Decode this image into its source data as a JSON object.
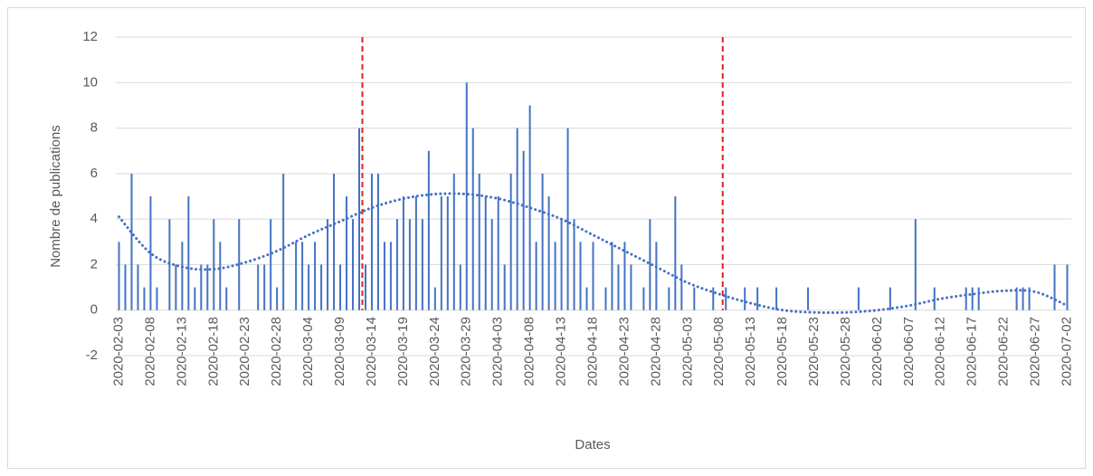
{
  "chart_data": {
    "type": "bar",
    "x_label": "Dates",
    "y_label": "Nombre de publications",
    "categories": [
      "2020-02-03",
      null,
      null,
      null,
      null,
      "2020-02-08",
      null,
      null,
      null,
      null,
      "2020-02-13",
      null,
      null,
      null,
      null,
      "2020-02-18",
      null,
      null,
      null,
      null,
      "2020-02-23",
      null,
      null,
      null,
      null,
      "2020-02-28",
      null,
      null,
      null,
      null,
      "2020-03-04",
      null,
      null,
      null,
      null,
      "2020-03-09",
      null,
      null,
      null,
      null,
      "2020-03-14",
      null,
      null,
      null,
      null,
      "2020-03-19",
      null,
      null,
      null,
      null,
      "2020-03-24",
      null,
      null,
      null,
      null,
      "2020-03-29",
      null,
      null,
      null,
      null,
      "2020-04-03",
      null,
      null,
      null,
      null,
      "2020-04-08",
      null,
      null,
      null,
      null,
      "2020-04-13",
      null,
      null,
      null,
      null,
      "2020-04-18",
      null,
      null,
      null,
      null,
      "2020-04-23",
      null,
      null,
      null,
      null,
      "2020-04-28",
      null,
      null,
      null,
      null,
      "2020-05-03",
      null,
      null,
      null,
      null,
      "2020-05-08",
      null,
      null,
      null,
      null,
      "2020-05-13",
      null,
      null,
      null,
      null,
      "2020-05-18",
      null,
      null,
      null,
      null,
      "2020-05-23",
      null,
      null,
      null,
      null,
      "2020-05-28",
      null,
      null,
      null,
      null,
      "2020-06-02",
      null,
      null,
      null,
      null,
      "2020-06-07",
      null,
      null,
      null,
      null,
      "2020-06-12",
      null,
      null,
      null,
      null,
      "2020-06-17",
      null,
      null,
      null,
      null,
      "2020-06-22",
      null,
      null,
      null,
      null,
      "2020-06-27",
      null,
      null,
      null,
      null,
      "2020-07-02"
    ],
    "values": [
      3,
      2,
      6,
      2,
      1,
      5,
      1,
      0,
      4,
      2,
      3,
      5,
      1,
      2,
      2,
      4,
      3,
      1,
      0,
      4,
      0,
      0,
      2,
      2,
      4,
      1,
      6,
      0,
      3,
      3,
      2,
      3,
      2,
      4,
      6,
      2,
      5,
      4,
      8,
      2,
      6,
      6,
      3,
      3,
      4,
      5,
      4,
      5,
      4,
      7,
      1,
      5,
      5,
      6,
      2,
      10,
      8,
      6,
      5,
      4,
      5,
      2,
      6,
      8,
      7,
      9,
      3,
      6,
      5,
      3,
      4,
      8,
      4,
      3,
      1,
      3,
      0,
      1,
      3,
      2,
      3,
      2,
      0,
      1,
      4,
      3,
      0,
      1,
      5,
      2,
      0,
      1,
      0,
      0,
      1,
      0,
      1,
      0,
      0,
      1,
      0,
      1,
      0,
      0,
      1,
      0,
      0,
      0,
      0,
      1,
      0,
      0,
      0,
      0,
      0,
      0,
      0,
      1,
      0,
      0,
      0,
      0,
      1,
      0,
      0,
      0,
      4,
      0,
      0,
      1,
      0,
      0,
      0,
      0,
      1,
      1,
      1,
      0,
      0,
      0,
      0,
      0,
      1,
      1,
      1,
      0,
      0,
      0,
      2,
      0,
      2
    ],
    "color": "#4472c4",
    "ylim": [
      -2,
      12
    ],
    "yticks": [
      -2,
      0,
      2,
      4,
      6,
      8,
      10,
      12
    ],
    "grid": true,
    "trendline": {
      "color": "#4472c4",
      "style": "dotted",
      "x": [
        "2020-02-03",
        "2020-02-08",
        "2020-02-13",
        "2020-02-18",
        "2020-02-23",
        "2020-02-28",
        "2020-03-04",
        "2020-03-09",
        "2020-03-14",
        "2020-03-19",
        "2020-03-24",
        "2020-03-29",
        "2020-04-03",
        "2020-04-08",
        "2020-04-13",
        "2020-04-18",
        "2020-04-23",
        "2020-04-28",
        "2020-05-03",
        "2020-05-08",
        "2020-05-13",
        "2020-05-18",
        "2020-05-23",
        "2020-05-28",
        "2020-06-02",
        "2020-06-07",
        "2020-06-12",
        "2020-06-17",
        "2020-06-22",
        "2020-06-27",
        "2020-07-02"
      ],
      "values": [
        4.1,
        2.5,
        1.9,
        1.8,
        2.1,
        2.6,
        3.3,
        3.9,
        4.5,
        4.9,
        5.1,
        5.1,
        4.9,
        4.5,
        4.0,
        3.3,
        2.6,
        1.9,
        1.2,
        0.7,
        0.3,
        0.0,
        -0.1,
        -0.1,
        0.0,
        0.2,
        0.5,
        0.7,
        0.85,
        0.8,
        0.2
      ]
    },
    "reference_lines": {
      "color": "#e02020",
      "style": "dashed",
      "x": [
        "2020-03-12",
        "2020-05-08"
      ]
    }
  }
}
